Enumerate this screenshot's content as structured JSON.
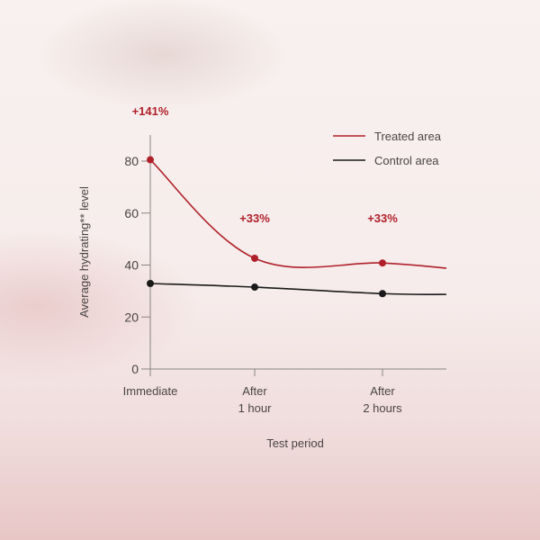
{
  "chart_data": {
    "type": "line",
    "xlabel": "Test period",
    "ylabel": "Average hydrating** level",
    "ylim": [
      0,
      80
    ],
    "yticks": [
      "0",
      "20",
      "40",
      "60",
      "80"
    ],
    "categories": [
      [
        "Immediate"
      ],
      [
        "After",
        "1 hour"
      ],
      [
        "After",
        "2 hours"
      ]
    ],
    "series": [
      {
        "name": "Treated area",
        "color": "#b0202a",
        "values": [
          80.5,
          42.6,
          40.8
        ],
        "trailing_value": 38.8
      },
      {
        "name": "Control area",
        "color": "#1a1a1a",
        "values": [
          32.9,
          31.5,
          29.0
        ],
        "trailing_value": 28.7
      }
    ],
    "annotations": [
      "+141%",
      "+33%",
      "+33%"
    ],
    "legend_position": "top-right",
    "grid": false
  }
}
